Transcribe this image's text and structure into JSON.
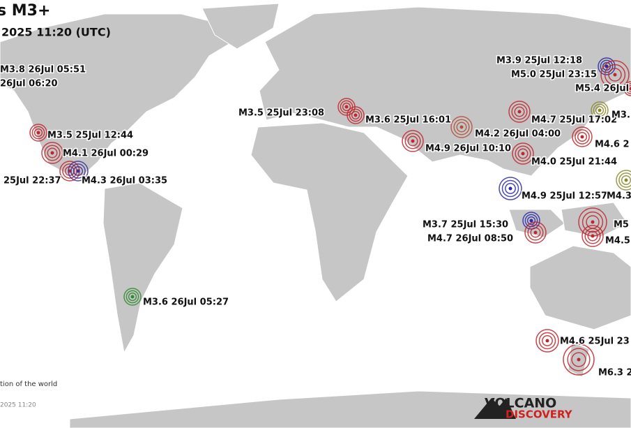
{
  "header": {
    "title": "s M3+",
    "subtitle": "2025 11:20 (UTC)"
  },
  "quakes": [
    {
      "label": "M3.8 26Jul 05:51",
      "color": "#c0262c"
    },
    {
      "label": "26Jul 06:20",
      "color": "#c0262c"
    },
    {
      "label": "M3.5 25Jul 12:44",
      "color": "#c0262c"
    },
    {
      "label": "M4.1 26Jul 00:29",
      "color": "#c0262c"
    },
    {
      "label": "25Jul 22:37",
      "color": "#c0262c"
    },
    {
      "label": "M4.3 26Jul 03:35",
      "color": "#3a2a9a"
    },
    {
      "label": "M3.5 25Jul 23:08",
      "color": "#c0262c"
    },
    {
      "label": "M3.6 25Jul 16:01",
      "color": "#c0262c"
    },
    {
      "label": "M3.6 26Jul 05:27",
      "color": "#2e8a2e"
    },
    {
      "label": "M4.2 26Jul 04:00",
      "color": "#b0503a"
    },
    {
      "label": "M4.9 26Jul 10:10",
      "color": "#c0262c"
    },
    {
      "label": "M4.7 25Jul 17:02",
      "color": "#c0262c"
    },
    {
      "label": "M4.0 25Jul 21:44",
      "color": "#c0262c"
    },
    {
      "label": "M3.9 25Jul 12:18",
      "color": "#2a2a9a"
    },
    {
      "label": "M5.0 25Jul 23:15",
      "color": "#c0262c"
    },
    {
      "label": "M5.4 26Jul",
      "color": "#c0262c"
    },
    {
      "label": "M3.",
      "color": "#8a8a2a"
    },
    {
      "label": "M4.6 2",
      "color": "#c0262c"
    },
    {
      "label": "M4.9 25Jul 12:57",
      "color": "#2a2aaa"
    },
    {
      "label": "M4.3",
      "color": "#8a8a2a"
    },
    {
      "label": "M3.7 25Jul 15:30",
      "color": "#2a2aaa"
    },
    {
      "label": "M4.7 26Jul 08:50",
      "color": "#c0262c"
    },
    {
      "label": "M5",
      "color": "#c0262c"
    },
    {
      "label": "M4.5",
      "color": "#c0262c"
    },
    {
      "label": "M4.6 25Jul 23",
      "color": "#c0262c"
    },
    {
      "label": "M6.3 2",
      "color": "#c0262c"
    }
  ],
  "footer": {
    "note": "tion of the world",
    "time": "2025 11:20",
    "logo_top": "VOLCANO",
    "logo_bottom": "DISCOVERY"
  }
}
